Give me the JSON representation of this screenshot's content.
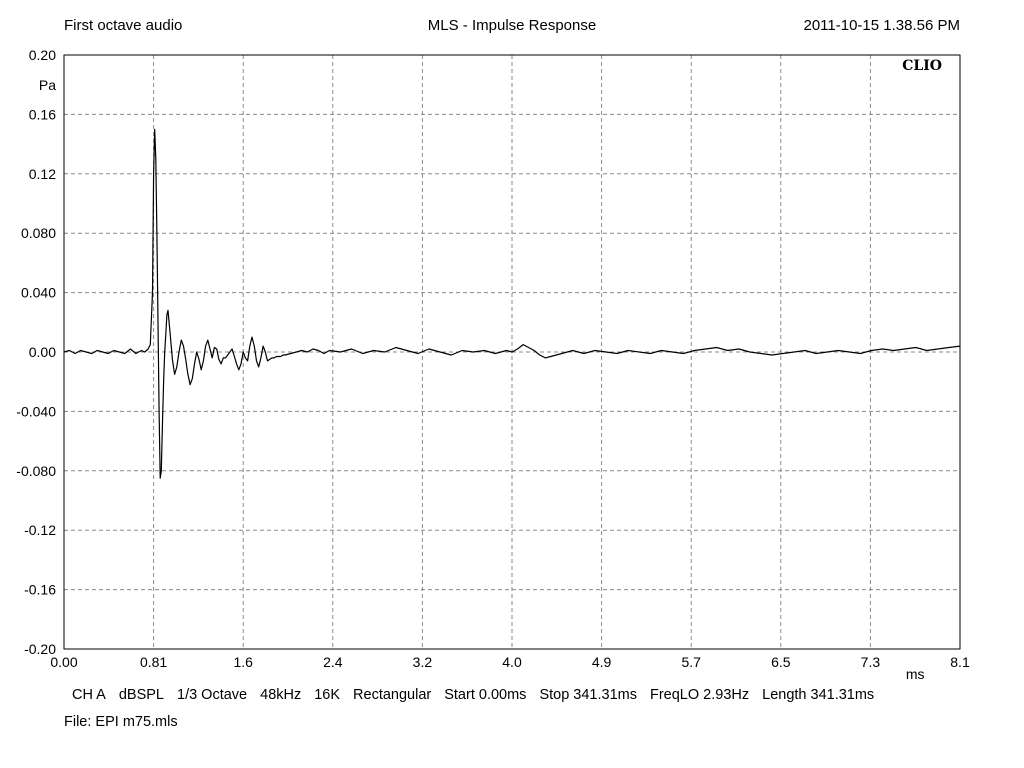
{
  "header": {
    "left": "First octave audio",
    "center": "MLS - Impulse Response",
    "right": "2011-10-15 1.38.56 PM"
  },
  "chart_data": {
    "type": "line",
    "title": "MLS - Impulse Response",
    "xlabel": "ms",
    "ylabel": "Pa",
    "xlim": [
      0.0,
      8.1
    ],
    "ylim": [
      -0.2,
      0.2
    ],
    "grid": true,
    "brand": "CLIO",
    "x_ticks": [
      "0.00",
      "0.81",
      "1.6",
      "2.4",
      "3.2",
      "4.0",
      "4.9",
      "5.7",
      "6.5",
      "7.3",
      "8.1"
    ],
    "y_ticks": [
      "0.20",
      "0.16",
      "0.12",
      "0.080",
      "0.040",
      "0.00",
      "-0.040",
      "-0.080",
      "-0.12",
      "-0.16",
      "-0.20"
    ],
    "series": [
      {
        "color": "#000000",
        "x": [
          0.0,
          0.05,
          0.1,
          0.15,
          0.2,
          0.25,
          0.3,
          0.35,
          0.4,
          0.45,
          0.5,
          0.55,
          0.6,
          0.65,
          0.7,
          0.73,
          0.76,
          0.78,
          0.8,
          0.81,
          0.82,
          0.83,
          0.84,
          0.85,
          0.86,
          0.87,
          0.88,
          0.89,
          0.9,
          0.91,
          0.92,
          0.93,
          0.94,
          0.96,
          0.98,
          1.0,
          1.02,
          1.04,
          1.06,
          1.08,
          1.1,
          1.12,
          1.14,
          1.16,
          1.18,
          1.2,
          1.22,
          1.24,
          1.26,
          1.28,
          1.3,
          1.32,
          1.34,
          1.36,
          1.38,
          1.4,
          1.42,
          1.44,
          1.46,
          1.48,
          1.5,
          1.52,
          1.54,
          1.56,
          1.58,
          1.6,
          1.62,
          1.64,
          1.66,
          1.68,
          1.7,
          1.72,
          1.74,
          1.76,
          1.78,
          1.8,
          1.82,
          1.84,
          1.86,
          1.88,
          1.9,
          1.92,
          1.94,
          1.96,
          1.98,
          2.0,
          2.05,
          2.1,
          2.15,
          2.2,
          2.25,
          2.3,
          2.35,
          2.4,
          2.5,
          2.6,
          2.7,
          2.8,
          2.9,
          3.0,
          3.1,
          3.2,
          3.3,
          3.4,
          3.5,
          3.6,
          3.7,
          3.8,
          3.9,
          4.0,
          4.05,
          4.1,
          4.15,
          4.2,
          4.25,
          4.3,
          4.35,
          4.4,
          4.5,
          4.6,
          4.7,
          4.8,
          4.9,
          5.0,
          5.1,
          5.2,
          5.3,
          5.4,
          5.5,
          5.6,
          5.7,
          5.8,
          5.9,
          6.0,
          6.1,
          6.2,
          6.3,
          6.4,
          6.5,
          6.6,
          6.7,
          6.8,
          6.9,
          7.0,
          7.1,
          7.2,
          7.3,
          7.4,
          7.5,
          7.6,
          7.7,
          7.8,
          7.9,
          8.0,
          8.1
        ],
        "y": [
          0.0,
          0.001,
          -0.001,
          0.001,
          0.0,
          -0.001,
          0.001,
          0.0,
          -0.001,
          0.001,
          0.0,
          -0.001,
          0.002,
          -0.001,
          0.001,
          0.0,
          0.002,
          0.005,
          0.04,
          0.12,
          0.15,
          0.13,
          0.08,
          0.02,
          -0.04,
          -0.085,
          -0.08,
          -0.05,
          -0.02,
          0.0,
          0.012,
          0.025,
          0.028,
          0.012,
          -0.005,
          -0.015,
          -0.01,
          0.0,
          0.008,
          0.004,
          -0.005,
          -0.015,
          -0.022,
          -0.018,
          -0.008,
          0.0,
          -0.005,
          -0.012,
          -0.006,
          0.004,
          0.008,
          0.002,
          -0.004,
          0.003,
          0.002,
          -0.005,
          -0.008,
          -0.004,
          -0.004,
          -0.002,
          0.0,
          0.002,
          -0.003,
          -0.008,
          -0.012,
          -0.008,
          0.0,
          -0.004,
          -0.006,
          0.004,
          0.01,
          0.004,
          -0.006,
          -0.01,
          -0.004,
          0.004,
          0.0,
          -0.006,
          -0.005,
          -0.004,
          -0.004,
          -0.003,
          -0.003,
          -0.003,
          -0.002,
          -0.002,
          -0.001,
          0.0,
          0.001,
          0.0,
          0.002,
          0.001,
          -0.001,
          0.001,
          0.0,
          0.002,
          -0.001,
          0.001,
          0.0,
          0.003,
          0.001,
          -0.001,
          0.002,
          0.0,
          -0.002,
          0.001,
          0.0,
          0.001,
          -0.001,
          0.001,
          0.0,
          0.002,
          0.005,
          0.003,
          0.001,
          -0.002,
          -0.004,
          -0.003,
          -0.001,
          0.001,
          -0.001,
          0.001,
          0.0,
          -0.001,
          0.001,
          0.0,
          -0.001,
          0.001,
          0.0,
          -0.001,
          0.001,
          0.002,
          0.003,
          0.001,
          0.002,
          0.0,
          -0.001,
          -0.002,
          -0.001,
          0.0,
          0.001,
          -0.001,
          0.0,
          0.001,
          0.0,
          -0.001,
          0.001,
          0.002,
          0.001,
          0.002,
          0.003,
          0.001,
          0.002,
          0.003,
          0.004
        ]
      }
    ]
  },
  "footer": {
    "settings": [
      "CH A",
      "dBSPL",
      "1/3 Octave",
      "48kHz",
      "16K",
      "Rectangular",
      "Start 0.00ms",
      "Stop 341.31ms",
      "FreqLO 2.93Hz",
      "Length 341.31ms"
    ],
    "file": "File: EPI m75.mls"
  }
}
